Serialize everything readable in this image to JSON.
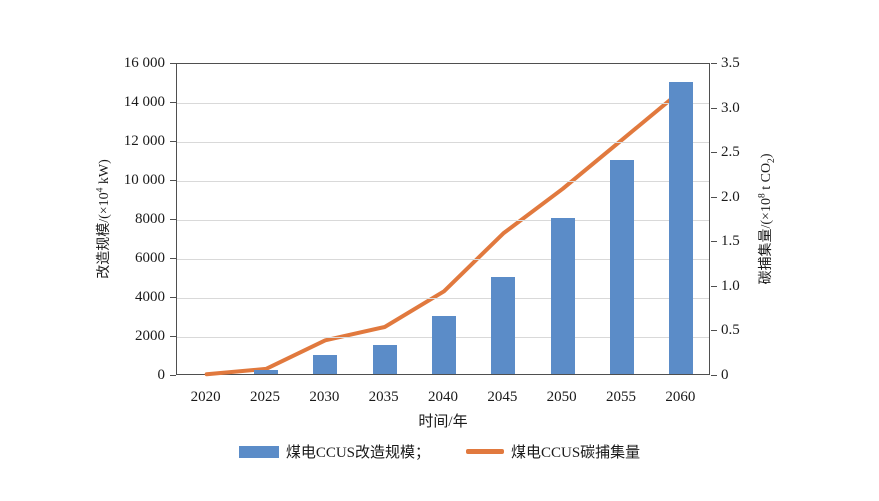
{
  "chart_data": {
    "type": "bar",
    "title": "",
    "categories": [
      "2020",
      "2025",
      "2030",
      "2035",
      "2040",
      "2045",
      "2050",
      "2055",
      "2060"
    ],
    "series": [
      {
        "name": "煤电CCUS改造规模",
        "type": "bar",
        "axis": "left",
        "values": [
          0,
          200,
          1000,
          1500,
          3000,
          5000,
          8000,
          11000,
          15000
        ]
      },
      {
        "name": "煤电CCUS碳捕集量",
        "type": "line",
        "axis": "right",
        "values": [
          0.02,
          0.08,
          0.4,
          0.55,
          0.95,
          1.6,
          2.1,
          2.65,
          3.2
        ]
      }
    ],
    "xlabel": "时间/年",
    "ylabel_left": "改造规模/(×10⁴ kW)",
    "ylabel_right": "碳捕集量/(×10⁸ t CO₂)",
    "left_axis": {
      "min": 0,
      "max": 16000,
      "ticks": [
        0,
        2000,
        4000,
        6000,
        8000,
        10000,
        12000,
        14000,
        16000
      ],
      "tick_labels": [
        "0",
        "2000",
        "4000",
        "6000",
        "8000",
        "10 000",
        "12 000",
        "14 000",
        "16 000"
      ]
    },
    "right_axis": {
      "min": 0,
      "max": 3.5,
      "ticks": [
        0,
        0.5,
        1,
        1.5,
        2,
        2.5,
        3,
        3.5
      ],
      "tick_labels": [
        "0",
        "0.5",
        "1.0",
        "1.5",
        "2.0",
        "2.5",
        "3.0",
        "3.5"
      ]
    },
    "grid": "horizontal",
    "legend_position": "bottom"
  },
  "axis_titles": {
    "left": {
      "pre": "改造规模/(×10",
      "sup": "4",
      "post": " kW)"
    },
    "right": {
      "pre": "碳捕集量/(×10",
      "sup": "8",
      "mid": " t CO",
      "sub": "2",
      "post": ")"
    },
    "x": "时间/年"
  },
  "legend": {
    "bar_label": "煤电CCUS改造规模；",
    "line_label": "煤电CCUS碳捕集量"
  },
  "colors": {
    "bar": "#5b8cc8",
    "line": "#e1793e",
    "grid": "#d9d9d9",
    "frame": "#4f4f4f",
    "text": "#1a1a1a"
  }
}
